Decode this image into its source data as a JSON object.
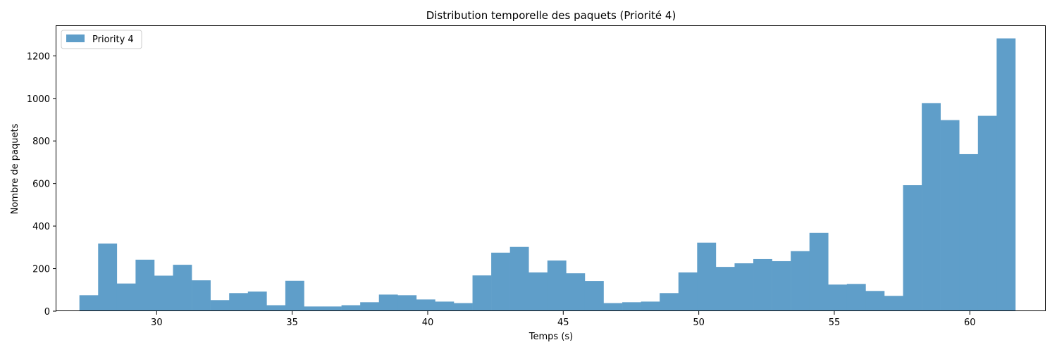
{
  "chart_data": {
    "type": "bar",
    "title": "Distribution temporelle des paquets (Priorité 4)",
    "xlabel": "Temps (s)",
    "ylabel": "Nombre de paquets",
    "xlim": [
      26.3,
      62.8
    ],
    "ylim": [
      0,
      1340
    ],
    "xticks": [
      30,
      35,
      40,
      45,
      50,
      55,
      60
    ],
    "yticks": [
      0,
      200,
      400,
      600,
      800,
      1000,
      1200
    ],
    "grid": false,
    "legend_position": "top-left",
    "bin_start": 27.15,
    "bin_width": 0.6906,
    "series": [
      {
        "name": "Priority 4",
        "color": "#5f9ec9",
        "values": [
          75,
          318,
          130,
          242,
          167,
          218,
          145,
          52,
          85,
          92,
          28,
          143,
          22,
          22,
          28,
          42,
          78,
          75,
          55,
          45,
          38,
          168,
          275,
          302,
          182,
          238,
          178,
          142,
          38,
          42,
          45,
          85,
          182,
          322,
          208,
          225,
          245,
          235,
          282,
          368,
          125,
          128,
          95,
          72,
          592,
          978,
          898,
          738,
          918,
          1282
        ]
      }
    ]
  }
}
